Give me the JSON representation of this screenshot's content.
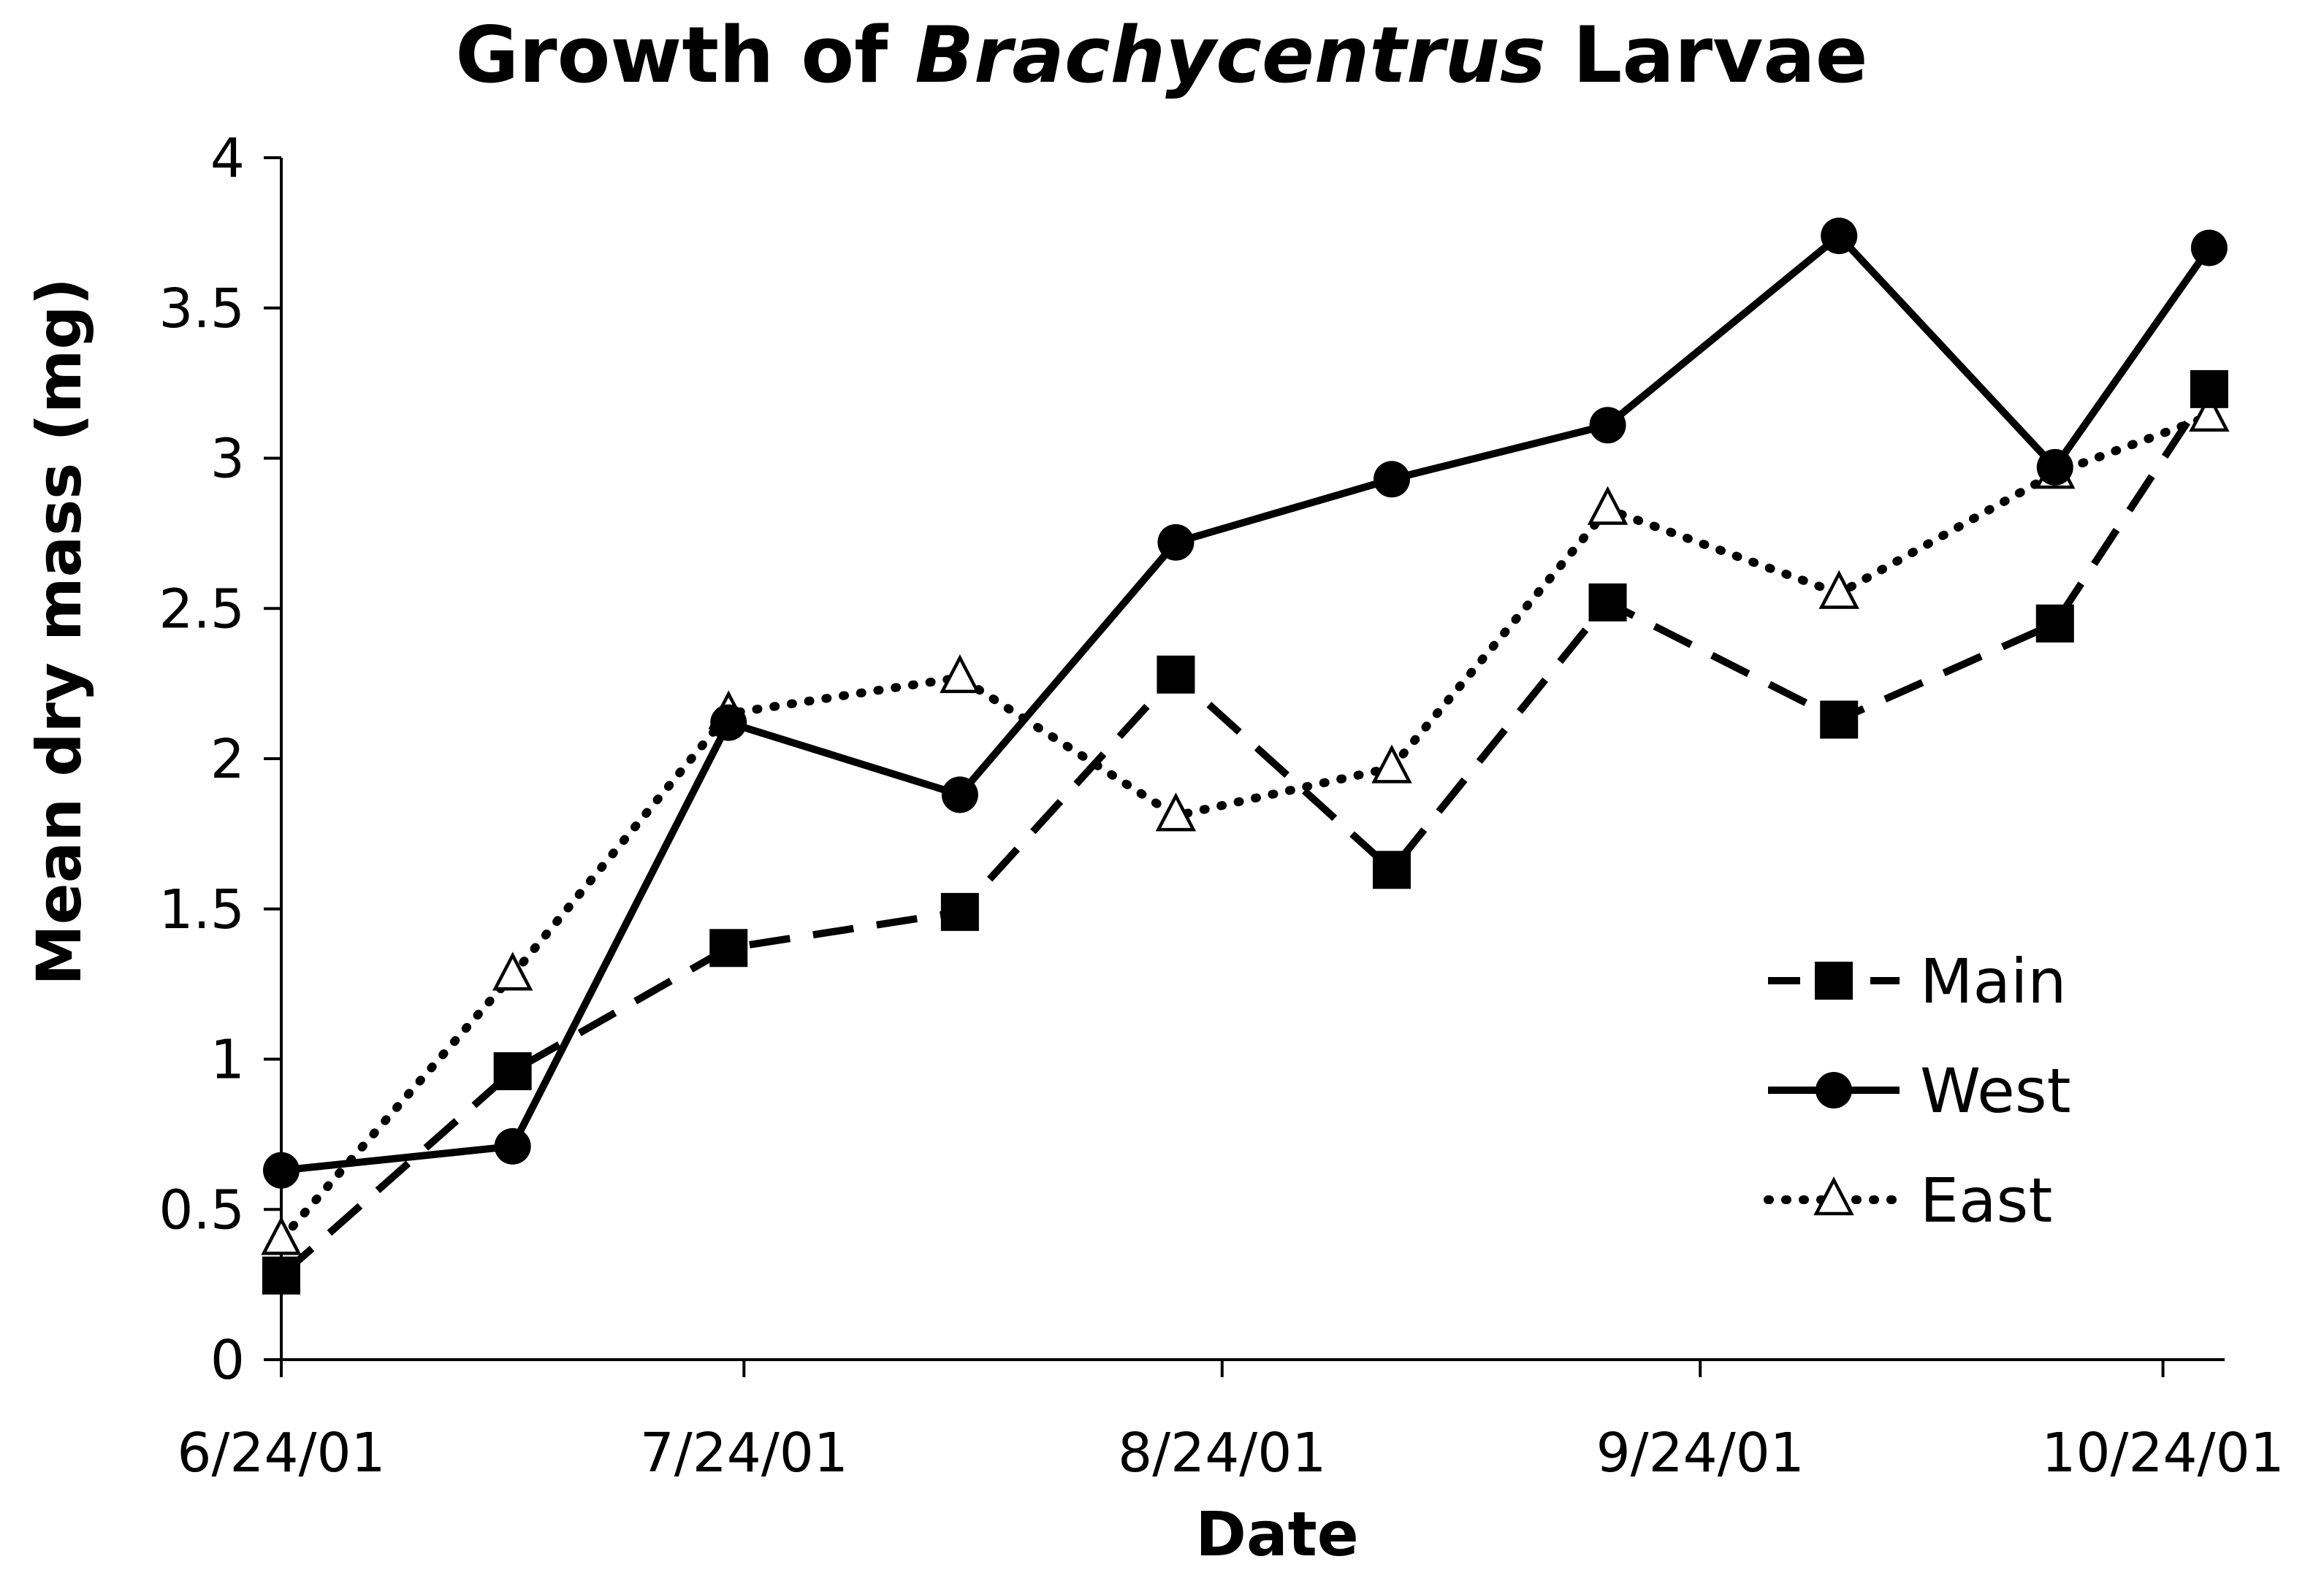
{
  "chart_data": {
    "type": "line",
    "title": "Growth of Brachycentrus Larvae",
    "title_parts": [
      "Growth of ",
      "Brachycentrus",
      " Larvae"
    ],
    "xlabel": "Date",
    "ylabel": "Mean dry mass (mg)",
    "ylim": [
      0,
      4
    ],
    "yticks": [
      "0",
      "0.5",
      "1",
      "1.5",
      "2",
      "2.5",
      "3",
      "3.5",
      "4"
    ],
    "yticks_values": [
      0,
      0.5,
      1,
      1.5,
      2,
      2.5,
      3,
      3.5,
      4
    ],
    "xlim": [
      "2001-06-24",
      "2001-10-28"
    ],
    "xticks": [
      "6/24/01",
      "7/24/01",
      "8/24/01",
      "9/24/01",
      "10/24/01"
    ],
    "xticks_dates": [
      "2001-06-24",
      "2001-07-24",
      "2001-08-24",
      "2001-09-24",
      "2001-10-24"
    ],
    "grid": false,
    "legend_position": "right",
    "series": [
      {
        "name": "Main",
        "marker": "square-filled",
        "line": "dashed",
        "color": "#000000",
        "points": [
          {
            "x": "2001-06-24",
            "y": 0.28
          },
          {
            "x": "2001-07-09",
            "y": 0.96
          },
          {
            "x": "2001-07-23",
            "y": 1.37
          },
          {
            "x": "2001-08-07",
            "y": 1.49
          },
          {
            "x": "2001-08-21",
            "y": 2.28
          },
          {
            "x": "2001-09-04",
            "y": 1.63
          },
          {
            "x": "2001-09-18",
            "y": 2.52
          },
          {
            "x": "2001-10-03",
            "y": 2.13
          },
          {
            "x": "2001-10-17",
            "y": 2.45
          },
          {
            "x": "2001-10-27",
            "y": 3.23
          }
        ]
      },
      {
        "name": "West",
        "marker": "circle-filled",
        "line": "solid",
        "color": "#000000",
        "points": [
          {
            "x": "2001-06-24",
            "y": 0.63
          },
          {
            "x": "2001-07-09",
            "y": 0.71
          },
          {
            "x": "2001-07-23",
            "y": 2.12
          },
          {
            "x": "2001-08-07",
            "y": 1.88
          },
          {
            "x": "2001-08-21",
            "y": 2.72
          },
          {
            "x": "2001-09-04",
            "y": 2.93
          },
          {
            "x": "2001-09-18",
            "y": 3.11
          },
          {
            "x": "2001-10-03",
            "y": 3.74
          },
          {
            "x": "2001-10-17",
            "y": 2.97
          },
          {
            "x": "2001-10-27",
            "y": 3.7
          }
        ]
      },
      {
        "name": "East",
        "marker": "triangle-open",
        "line": "dotted",
        "color": "#000000",
        "points": [
          {
            "x": "2001-06-24",
            "y": 0.4
          },
          {
            "x": "2001-07-09",
            "y": 1.28
          },
          {
            "x": "2001-07-23",
            "y": 2.15
          },
          {
            "x": "2001-08-07",
            "y": 2.27
          },
          {
            "x": "2001-08-21",
            "y": 1.81
          },
          {
            "x": "2001-09-04",
            "y": 1.97
          },
          {
            "x": "2001-09-18",
            "y": 2.83
          },
          {
            "x": "2001-10-03",
            "y": 2.55
          },
          {
            "x": "2001-10-17",
            "y": 2.95
          },
          {
            "x": "2001-10-27",
            "y": 3.14
          }
        ]
      }
    ]
  }
}
